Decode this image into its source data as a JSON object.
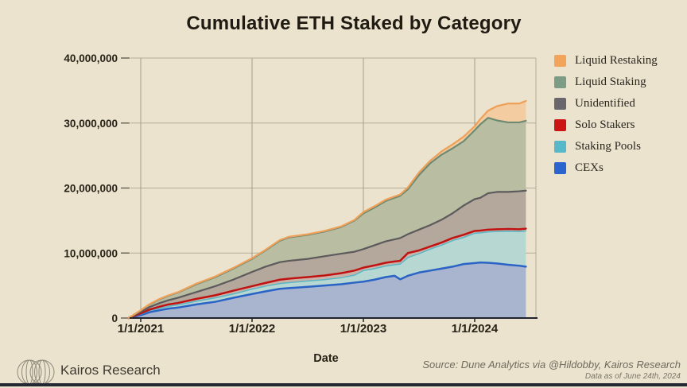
{
  "title": "Cumulative ETH Staked by Category",
  "legend": {
    "items": [
      {
        "label": "Liquid Restaking",
        "color": "#f2a45c"
      },
      {
        "label": "Liquid Staking",
        "color": "#7d9c85"
      },
      {
        "label": "Unidentified",
        "color": "#6a676c"
      },
      {
        "label": "Solo Stakers",
        "color": "#cc1414"
      },
      {
        "label": "Staking Pools",
        "color": "#56b8c8"
      },
      {
        "label": "CEXs",
        "color": "#2b63cf"
      }
    ]
  },
  "footer": {
    "brand": "Kairos Research",
    "source_line1": "Source: Dune Analytics via @Hildobby, Kairos Research",
    "source_line2": "Data as of June 24th, 2024"
  },
  "colors": {
    "background": "#ebe3cd",
    "gridline_h": "#b3ac97",
    "gridline_v": "#a49e8b",
    "axis": "#20242e",
    "tick": "#6b675c"
  },
  "chart_data": {
    "type": "area",
    "stacked": true,
    "title": "Cumulative ETH Staked by Category",
    "xlabel": "Date",
    "ylabel": "",
    "unit": "million ETH",
    "values_are": "cumulative_stack_boundaries_in_millions",
    "y_axis": {
      "range_millions": [
        0,
        40
      ],
      "ticks": [
        {
          "label": "0",
          "v": 0
        },
        {
          "label": "10,000,000",
          "v": 10
        },
        {
          "label": "20,000,000",
          "v": 20
        },
        {
          "label": "30,000,000",
          "v": 30
        },
        {
          "label": "40,000,000",
          "v": 40
        }
      ]
    },
    "x_axis": {
      "unit": "decimal_year",
      "range": [
        2020.89,
        2024.48
      ],
      "ticks": [
        {
          "label": "1/1/2021",
          "t": 2021
        },
        {
          "label": "1/1/2022",
          "t": 2022
        },
        {
          "label": "1/1/2023",
          "t": 2023
        },
        {
          "label": "1/1/2024",
          "t": 2024
        }
      ]
    },
    "x": [
      2020.89,
      2021.0,
      2021.08,
      2021.17,
      2021.25,
      2021.33,
      2021.5,
      2021.67,
      2021.83,
      2022.0,
      2022.12,
      2022.25,
      2022.33,
      2022.5,
      2022.65,
      2022.8,
      2022.92,
      2023.0,
      2023.1,
      2023.2,
      2023.28,
      2023.33,
      2023.4,
      2023.5,
      2023.6,
      2023.7,
      2023.8,
      2023.9,
      2024.0,
      2024.05,
      2024.12,
      2024.2,
      2024.3,
      2024.4,
      2024.46
    ],
    "series": [
      {
        "name": "CEXs",
        "line_color": "#2a63c6",
        "band_color": "#a9b5ce",
        "line_width": 2.5,
        "cumulative": [
          0,
          0.45,
          0.9,
          1.2,
          1.45,
          1.6,
          2.1,
          2.5,
          3.1,
          3.7,
          4.1,
          4.5,
          4.6,
          4.8,
          5.0,
          5.2,
          5.45,
          5.6,
          5.9,
          6.3,
          6.5,
          5.95,
          6.5,
          7.0,
          7.3,
          7.6,
          7.9,
          8.3,
          8.45,
          8.55,
          8.5,
          8.4,
          8.2,
          8.05,
          7.9
        ]
      },
      {
        "name": "Staking Pools",
        "line_color": "#5ab6c4",
        "band_color": "#b7d7d2",
        "line_width": 1.5,
        "cumulative": [
          0,
          0.62,
          1.15,
          1.5,
          1.8,
          2.0,
          2.6,
          3.1,
          3.7,
          4.45,
          4.9,
          5.3,
          5.45,
          5.7,
          5.9,
          6.2,
          6.6,
          7.3,
          7.6,
          8.0,
          8.2,
          8.3,
          9.3,
          9.9,
          10.6,
          11.2,
          11.9,
          12.4,
          13.05,
          13.1,
          13.25,
          13.3,
          13.35,
          13.3,
          13.4
        ]
      },
      {
        "name": "Solo Stakers",
        "line_color": "#c11212",
        "band_color": "#c9b3a8",
        "line_width": 2.5,
        "cumulative": [
          0,
          0.72,
          1.3,
          1.75,
          2.1,
          2.3,
          2.95,
          3.5,
          4.2,
          4.9,
          5.4,
          5.9,
          6.05,
          6.3,
          6.55,
          6.9,
          7.3,
          7.75,
          8.1,
          8.5,
          8.7,
          8.8,
          10.0,
          10.4,
          11.0,
          11.6,
          12.3,
          12.8,
          13.4,
          13.45,
          13.6,
          13.65,
          13.7,
          13.65,
          13.75
        ]
      },
      {
        "name": "Unidentified",
        "line_color": "#5d5a5c",
        "band_color": "#b3a89b",
        "line_width": 2.2,
        "cumulative": [
          0,
          0.95,
          1.7,
          2.3,
          2.75,
          3.1,
          4.0,
          4.9,
          5.9,
          7.1,
          7.9,
          8.6,
          8.8,
          9.1,
          9.5,
          9.9,
          10.2,
          10.6,
          11.2,
          11.8,
          12.1,
          12.3,
          12.9,
          13.6,
          14.3,
          15.1,
          16.1,
          17.3,
          18.3,
          18.5,
          19.2,
          19.4,
          19.4,
          19.5,
          19.6
        ]
      },
      {
        "name": "Liquid Staking",
        "line_color": "#6e8a72",
        "band_color": "#b9bda2",
        "line_width": 2.2,
        "cumulative": [
          0,
          1.15,
          2.1,
          2.9,
          3.45,
          3.9,
          5.2,
          6.3,
          7.6,
          9.1,
          10.4,
          11.9,
          12.4,
          12.8,
          13.3,
          14.0,
          15.0,
          16.1,
          17.0,
          18.0,
          18.5,
          18.8,
          19.8,
          22.0,
          23.8,
          25.1,
          26.1,
          27.2,
          28.9,
          29.8,
          30.8,
          30.4,
          30.1,
          30.1,
          30.35
        ]
      },
      {
        "name": "Liquid Restaking",
        "line_color": "#efa058",
        "band_color": "#f3cda1",
        "line_width": 2.2,
        "cumulative": [
          0,
          1.2,
          2.15,
          2.95,
          3.5,
          3.95,
          5.3,
          6.4,
          7.7,
          9.2,
          10.5,
          12.0,
          12.5,
          12.9,
          13.4,
          14.1,
          15.1,
          16.3,
          17.2,
          18.2,
          18.7,
          19.0,
          20.1,
          22.4,
          24.2,
          25.6,
          26.7,
          27.9,
          29.5,
          30.6,
          31.9,
          32.6,
          33.0,
          33.0,
          33.4
        ]
      }
    ]
  }
}
